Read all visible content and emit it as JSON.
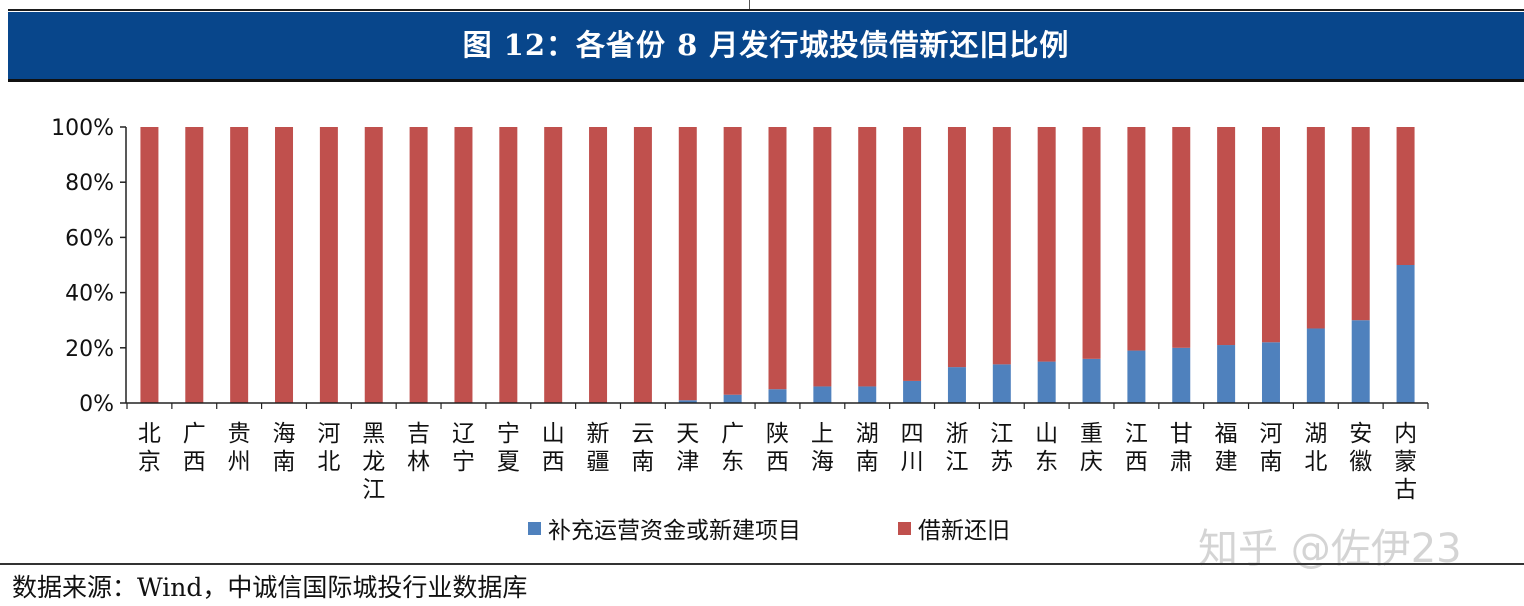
{
  "figure_title": "图 12：各省份 8 月发行城投债借新还旧比例",
  "source": "数据来源：Wind，中诚信国际城投行业数据库",
  "watermark": "知乎 @佐伊23",
  "colors": {
    "title_bg": "#08468b",
    "series_new": "#4f81bd",
    "series_refi": "#c0504d"
  },
  "chart_data": {
    "type": "bar",
    "stacked": true,
    "percent": true,
    "categories": [
      "北京",
      "广西",
      "贵州",
      "海南",
      "河北",
      "黑龙江",
      "吉林",
      "辽宁",
      "宁夏",
      "山西",
      "新疆",
      "云南",
      "天津",
      "广东",
      "陕西",
      "上海",
      "湖南",
      "四川",
      "浙江",
      "江苏",
      "山东",
      "重庆",
      "江西",
      "甘肃",
      "福建",
      "河南",
      "湖北",
      "安徽",
      "内蒙古"
    ],
    "series": [
      {
        "name": "补充运营资金或新建项目",
        "color": "#4f81bd",
        "values": [
          0,
          0,
          0,
          0,
          0,
          0,
          0,
          0,
          0,
          0,
          0,
          0,
          1,
          3,
          5,
          6,
          6,
          8,
          13,
          14,
          15,
          16,
          19,
          20,
          21,
          22,
          27,
          30,
          50
        ]
      },
      {
        "name": "借新还旧",
        "color": "#c0504d",
        "values": [
          100,
          100,
          100,
          100,
          100,
          100,
          100,
          100,
          100,
          100,
          100,
          100,
          99,
          97,
          95,
          94,
          94,
          92,
          87,
          86,
          85,
          84,
          81,
          80,
          79,
          78,
          73,
          70,
          50
        ]
      }
    ],
    "yticks": [
      "0%",
      "20%",
      "40%",
      "60%",
      "80%",
      "100%"
    ],
    "ylim": [
      0,
      100
    ],
    "legend_position": "bottom",
    "grid": false
  }
}
